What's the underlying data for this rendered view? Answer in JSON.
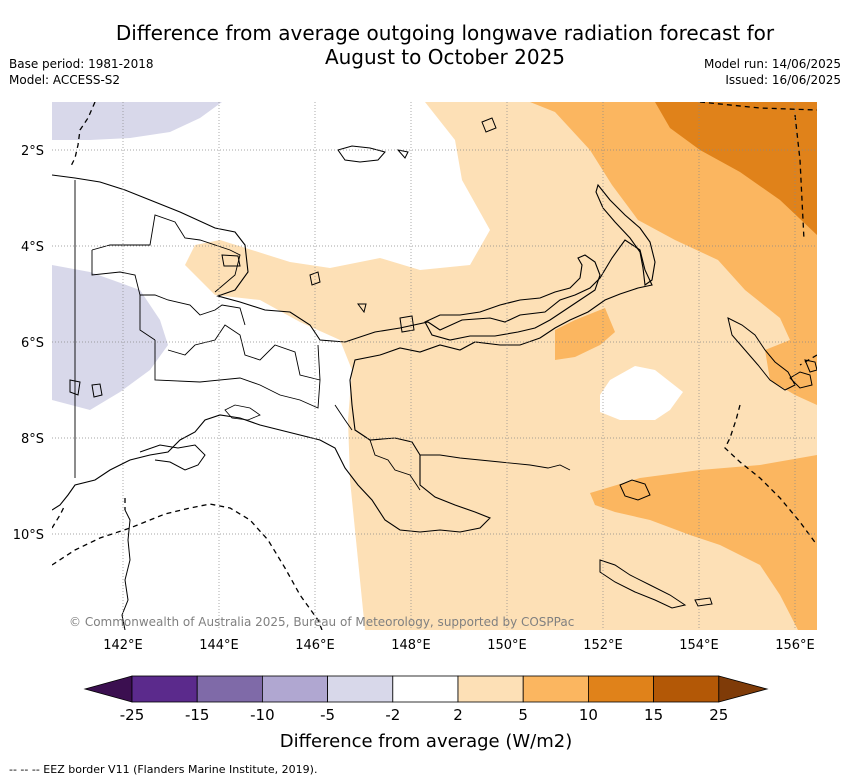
{
  "title_line1": "Difference from average outgoing longwave radiation forecast for",
  "title_line2": "August to October 2025",
  "base_period": "Base period: 1981-2018",
  "model": "Model: ACCESS-S2",
  "model_run": "Model run: 14/06/2025",
  "issued": "Issued: 16/06/2025",
  "copyright": "© Commonwealth of Australia 2025, Bureau of Meteorology, supported by COSPPac",
  "lat_labels": [
    "2°S",
    "4°S",
    "6°S",
    "8°S",
    "10°S"
  ],
  "lon_labels": [
    "142°E",
    "144°E",
    "146°E",
    "148°E",
    "150°E",
    "152°E",
    "154°E",
    "156°E"
  ],
  "colorbar": {
    "title": "Difference from average (W/m2)",
    "ticks": [
      "-25",
      "-15",
      "-10",
      "-5",
      "-2",
      "2",
      "5",
      "10",
      "15",
      "25"
    ],
    "colors": [
      "#3b0f50",
      "#5b2a8c",
      "#7f6aa8",
      "#b0a7d1",
      "#d8d8ea",
      "#ffffff",
      "#fde0b6",
      "#fbb660",
      "#e0821a",
      "#b35806",
      "#7f3b08"
    ]
  },
  "footnote": "--  --  -- EEZ border V11 (Flanders Marine Institute, 2019).",
  "map_colors": {
    "light_purple": "#d8d8ea",
    "light_orange": "#fde0b6",
    "mid_orange": "#fbb660",
    "dark_orange": "#e0821a"
  }
}
